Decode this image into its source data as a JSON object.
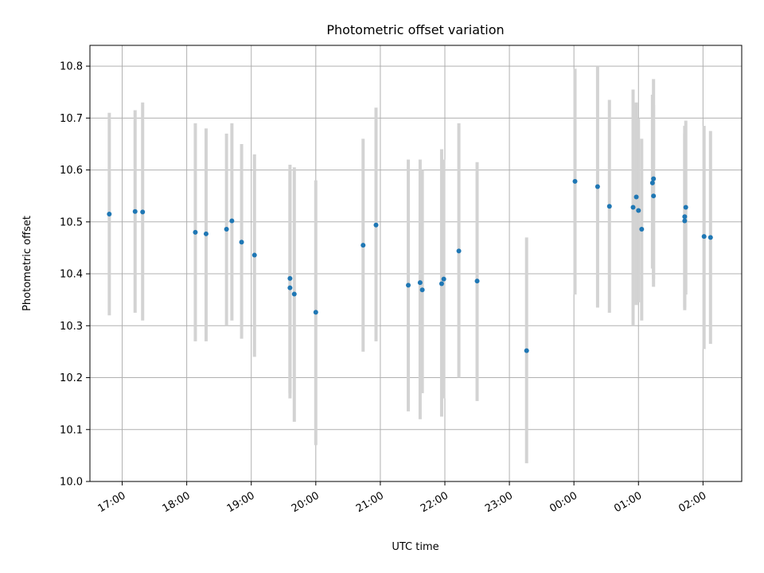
{
  "chart_data": {
    "type": "scatter",
    "title": "Photometric offset variation",
    "xlabel": "UTC time",
    "ylabel": "Photometric offset",
    "x_tick_labels": [
      "17:00",
      "18:00",
      "19:00",
      "20:00",
      "21:00",
      "22:00",
      "23:00",
      "00:00",
      "01:00",
      "02:00"
    ],
    "x_tick_times": [
      "17:00",
      "18:00",
      "19:00",
      "20:00",
      "21:00",
      "22:00",
      "23:00",
      "00:00",
      "01:00",
      "02:00"
    ],
    "ylim": [
      10.0,
      10.84
    ],
    "y_ticks": [
      10.0,
      10.1,
      10.2,
      10.3,
      10.4,
      10.5,
      10.6,
      10.7,
      10.8
    ],
    "y_tick_labels": [
      "10.0",
      "10.1",
      "10.2",
      "10.3",
      "10.4",
      "10.5",
      "10.6",
      "10.7",
      "10.8"
    ],
    "grid": true,
    "colors": {
      "points": "#1f77b4",
      "error_bars": "#d3d3d3"
    },
    "series": [
      {
        "points": [
          {
            "time": "16:48",
            "y": 10.515,
            "ylo": 10.32,
            "yhi": 10.71
          },
          {
            "time": "17:12",
            "y": 10.52,
            "ylo": 10.325,
            "yhi": 10.715
          },
          {
            "time": "17:19",
            "y": 10.519,
            "ylo": 10.31,
            "yhi": 10.73
          },
          {
            "time": "18:08",
            "y": 10.48,
            "ylo": 10.27,
            "yhi": 10.69
          },
          {
            "time": "18:18",
            "y": 10.477,
            "ylo": 10.27,
            "yhi": 10.68
          },
          {
            "time": "18:37",
            "y": 10.486,
            "ylo": 10.3,
            "yhi": 10.67
          },
          {
            "time": "18:42",
            "y": 10.502,
            "ylo": 10.31,
            "yhi": 10.69
          },
          {
            "time": "18:51",
            "y": 10.461,
            "ylo": 10.275,
            "yhi": 10.65
          },
          {
            "time": "19:03",
            "y": 10.436,
            "ylo": 10.24,
            "yhi": 10.63
          },
          {
            "time": "19:36",
            "y": 10.391,
            "ylo": 10.16,
            "yhi": 10.61
          },
          {
            "time": "19:36",
            "y": 10.373,
            "ylo": 10.17,
            "yhi": 10.6
          },
          {
            "time": "19:40",
            "y": 10.361,
            "ylo": 10.115,
            "yhi": 10.605
          },
          {
            "time": "20:00",
            "y": 10.326,
            "ylo": 10.07,
            "yhi": 10.58
          },
          {
            "time": "20:44",
            "y": 10.455,
            "ylo": 10.25,
            "yhi": 10.66
          },
          {
            "time": "20:56",
            "y": 10.494,
            "ylo": 10.27,
            "yhi": 10.72
          },
          {
            "time": "21:26",
            "y": 10.378,
            "ylo": 10.135,
            "yhi": 10.62
          },
          {
            "time": "21:37",
            "y": 10.383,
            "ylo": 10.12,
            "yhi": 10.62
          },
          {
            "time": "21:39",
            "y": 10.369,
            "ylo": 10.17,
            "yhi": 10.6
          },
          {
            "time": "21:57",
            "y": 10.381,
            "ylo": 10.125,
            "yhi": 10.64
          },
          {
            "time": "21:59",
            "y": 10.39,
            "ylo": 10.16,
            "yhi": 10.62
          },
          {
            "time": "22:13",
            "y": 10.444,
            "ylo": 10.2,
            "yhi": 10.69
          },
          {
            "time": "22:30",
            "y": 10.386,
            "ylo": 10.155,
            "yhi": 10.615
          },
          {
            "time": "23:16",
            "y": 10.252,
            "ylo": 10.035,
            "yhi": 10.47
          },
          {
            "time": "00:01",
            "y": 10.578,
            "ylo": 10.36,
            "yhi": 10.795
          },
          {
            "time": "00:22",
            "y": 10.568,
            "ylo": 10.335,
            "yhi": 10.8
          },
          {
            "time": "00:33",
            "y": 10.53,
            "ylo": 10.325,
            "yhi": 10.735
          },
          {
            "time": "00:55",
            "y": 10.528,
            "ylo": 10.3,
            "yhi": 10.755
          },
          {
            "time": "00:58",
            "y": 10.548,
            "ylo": 10.34,
            "yhi": 10.73
          },
          {
            "time": "01:00",
            "y": 10.522,
            "ylo": 10.345,
            "yhi": 10.7
          },
          {
            "time": "01:03",
            "y": 10.486,
            "ylo": 10.31,
            "yhi": 10.66
          },
          {
            "time": "01:13",
            "y": 10.575,
            "ylo": 10.41,
            "yhi": 10.745
          },
          {
            "time": "01:14",
            "y": 10.583,
            "ylo": 10.39,
            "yhi": 10.775
          },
          {
            "time": "01:14",
            "y": 10.55,
            "ylo": 10.375,
            "yhi": 10.725
          },
          {
            "time": "01:43",
            "y": 10.51,
            "ylo": 10.33,
            "yhi": 10.685
          },
          {
            "time": "01:43",
            "y": 10.502,
            "ylo": 10.335,
            "yhi": 10.67
          },
          {
            "time": "01:44",
            "y": 10.528,
            "ylo": 10.36,
            "yhi": 10.695
          },
          {
            "time": "02:01",
            "y": 10.472,
            "ylo": 10.255,
            "yhi": 10.685
          },
          {
            "time": "02:07",
            "y": 10.47,
            "ylo": 10.265,
            "yhi": 10.675
          }
        ]
      }
    ]
  }
}
